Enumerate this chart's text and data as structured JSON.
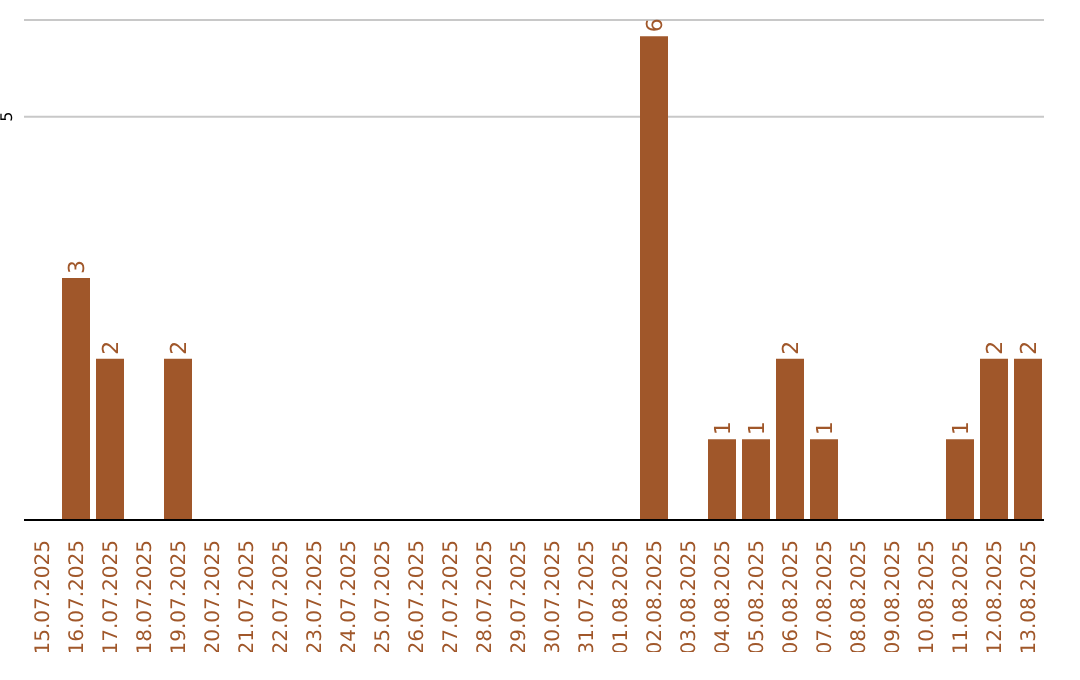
{
  "chart_data": {
    "type": "bar",
    "categories": [
      "15.07.2025",
      "16.07.2025",
      "17.07.2025",
      "18.07.2025",
      "19.07.2025",
      "20.07.2025",
      "21.07.2025",
      "22.07.2025",
      "23.07.2025",
      "24.07.2025",
      "25.07.2025",
      "26.07.2025",
      "27.07.2025",
      "28.07.2025",
      "29.07.2025",
      "30.07.2025",
      "31.07.2025",
      "01.08.2025",
      "02.08.2025",
      "03.08.2025",
      "04.08.2025",
      "05.08.2025",
      "06.08.2025",
      "07.08.2025",
      "08.08.2025",
      "09.08.2025",
      "10.08.2025",
      "11.08.2025",
      "12.08.2025",
      "13.08.2025"
    ],
    "values": [
      0,
      3,
      2,
      0,
      2,
      0,
      0,
      0,
      0,
      0,
      0,
      0,
      0,
      0,
      0,
      0,
      0,
      0,
      6,
      0,
      1,
      1,
      2,
      1,
      0,
      0,
      0,
      1,
      2,
      2
    ],
    "value_labels": [
      null,
      "3",
      "2",
      null,
      "2",
      null,
      null,
      null,
      null,
      null,
      null,
      null,
      null,
      null,
      null,
      null,
      null,
      null,
      "6",
      null,
      "1",
      "1",
      "2",
      "1",
      null,
      null,
      null,
      "1",
      "2",
      "2"
    ],
    "color": "#a0572a",
    "ylim": [
      0,
      6.2
    ],
    "yticks": [
      5
    ],
    "grid": "y"
  }
}
